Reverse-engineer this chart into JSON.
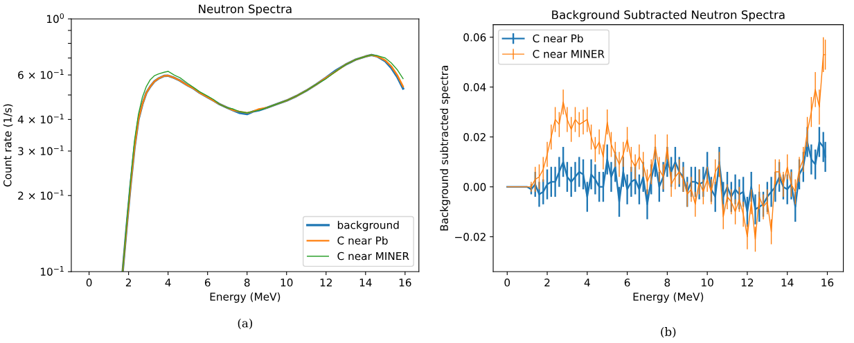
{
  "chart_data": [
    {
      "type": "line",
      "title": "Neutron Spectra",
      "xlabel": "Energy (MeV)",
      "ylabel": "Count rate (1/s)",
      "log": true,
      "legend": "lower right",
      "annotations": [
        "(a)"
      ],
      "xlim": [
        -0.9,
        16.7
      ],
      "xticks": [
        0,
        2,
        4,
        6,
        8,
        10,
        12,
        14,
        16
      ],
      "ylim": [
        0.1,
        1
      ],
      "yticks": [
        {
          "value": 0.1,
          "label": "10$^{−1}$"
        },
        {
          "value": 0.2,
          "label": "2 × 10$^{−1}$"
        },
        {
          "value": 0.3,
          "label": "3 × 10$^{−1}$"
        },
        {
          "value": 0.4,
          "label": "4 × 10$^{−1}$"
        },
        {
          "value": 0.5,
          "label": null
        },
        {
          "value": 0.6,
          "label": "6 × 10$^{−1}$"
        },
        {
          "value": 0.7,
          "label": null
        },
        {
          "value": 0.8,
          "label": null
        },
        {
          "value": 0.9,
          "label": null
        },
        {
          "value": 1,
          "label": "10$^{0}$"
        }
      ],
      "x": [
        1.7,
        1.9,
        2.1,
        2.3,
        2.5,
        2.7,
        2.9,
        3.1,
        3.3,
        3.5,
        3.8,
        4.0,
        4.3,
        4.6,
        5.0,
        5.3,
        5.6,
        6.0,
        6.3,
        6.6,
        7.0,
        7.3,
        7.6,
        8.0,
        8.3,
        8.6,
        9.0,
        9.5,
        10.0,
        10.5,
        11.0,
        11.5,
        12.0,
        12.5,
        13.0,
        13.5,
        14.0,
        14.3,
        14.6,
        15.0,
        15.3,
        15.6,
        15.9
      ],
      "series": [
        {
          "name": "background",
          "color": "#1f77b4",
          "values": [
            0.1,
            0.15,
            0.22,
            0.31,
            0.4,
            0.46,
            0.51,
            0.54,
            0.565,
            0.58,
            0.595,
            0.596,
            0.585,
            0.57,
            0.545,
            0.53,
            0.51,
            0.49,
            0.475,
            0.46,
            0.445,
            0.435,
            0.425,
            0.42,
            0.43,
            0.435,
            0.445,
            0.46,
            0.475,
            0.495,
            0.52,
            0.55,
            0.585,
            0.625,
            0.66,
            0.69,
            0.71,
            0.72,
            0.71,
            0.68,
            0.64,
            0.59,
            0.53
          ]
        },
        {
          "name": "C near Pb",
          "color": "#ff7f0e",
          "values": [
            0.1,
            0.15,
            0.22,
            0.31,
            0.4,
            0.46,
            0.51,
            0.54,
            0.565,
            0.58,
            0.595,
            0.596,
            0.585,
            0.57,
            0.545,
            0.53,
            0.51,
            0.49,
            0.475,
            0.46,
            0.445,
            0.435,
            0.43,
            0.425,
            0.43,
            0.44,
            0.445,
            0.46,
            0.475,
            0.495,
            0.52,
            0.55,
            0.585,
            0.62,
            0.66,
            0.69,
            0.71,
            0.72,
            0.71,
            0.685,
            0.65,
            0.6,
            0.54
          ]
        },
        {
          "name": "C near MINER",
          "color": "#2ca02c",
          "values": [
            0.1,
            0.155,
            0.23,
            0.33,
            0.42,
            0.49,
            0.54,
            0.575,
            0.595,
            0.605,
            0.615,
            0.62,
            0.6,
            0.585,
            0.555,
            0.535,
            0.515,
            0.495,
            0.48,
            0.46,
            0.445,
            0.44,
            0.43,
            0.425,
            0.43,
            0.435,
            0.445,
            0.46,
            0.475,
            0.495,
            0.52,
            0.55,
            0.58,
            0.62,
            0.66,
            0.69,
            0.71,
            0.72,
            0.715,
            0.7,
            0.67,
            0.63,
            0.58
          ]
        }
      ]
    },
    {
      "type": "line",
      "title": "Background Subtracted Neutron Spectra",
      "xlabel": "Energy (MeV)",
      "ylabel": "Background subtracted spectra",
      "legend": "upper left",
      "annotations": [
        "(b)"
      ],
      "xlim": [
        -0.7,
        16.8
      ],
      "xticks": [
        0,
        2,
        4,
        6,
        8,
        10,
        12,
        14,
        16
      ],
      "ylim": [
        -0.034,
        0.065
      ],
      "yticks": [
        {
          "value": -0.02,
          "label": "−0.02"
        },
        {
          "value": 0,
          "label": "0.00"
        },
        {
          "value": 0.02,
          "label": "0.02"
        },
        {
          "value": 0.04,
          "label": "0.04"
        },
        {
          "value": 0.06,
          "label": "0.06"
        }
      ],
      "x": [
        0,
        0.2,
        0.4,
        0.6,
        0.8,
        1.0,
        1.2,
        1.4,
        1.6,
        1.8,
        2.0,
        2.2,
        2.4,
        2.6,
        2.8,
        3.0,
        3.2,
        3.4,
        3.6,
        3.8,
        4.0,
        4.2,
        4.4,
        4.6,
        4.8,
        5.0,
        5.2,
        5.4,
        5.6,
        5.8,
        6.0,
        6.2,
        6.4,
        6.6,
        6.8,
        7.0,
        7.2,
        7.4,
        7.6,
        7.8,
        8.0,
        8.2,
        8.4,
        8.6,
        8.8,
        9.0,
        9.2,
        9.4,
        9.6,
        9.8,
        10.0,
        10.2,
        10.4,
        10.6,
        10.8,
        11.0,
        11.2,
        11.4,
        11.6,
        11.8,
        12.0,
        12.2,
        12.4,
        12.6,
        12.8,
        13.0,
        13.2,
        13.4,
        13.6,
        13.8,
        14.0,
        14.2,
        14.4,
        14.6,
        14.8,
        15.0,
        15.2,
        15.4,
        15.6,
        15.8,
        15.9
      ],
      "series": [
        {
          "name": "C near Pb",
          "color": "#1f77b4",
          "values": [
            0,
            0,
            0,
            0,
            0,
            0,
            -0.001,
            0.001,
            -0.003,
            -0.002,
            0.001,
            0.002,
            0.002,
            0.006,
            0.01,
            0.004,
            0.002,
            0.004,
            0.006,
            0.005,
            -0.004,
            0.005,
            0.003,
            0,
            0,
            0.011,
            0.004,
            0.008,
            -0.006,
            0.006,
            -0.001,
            0.002,
            0.003,
            -0.001,
            0.004,
            -0.007,
            0.003,
            0.01,
            0,
            0.004,
            0.01,
            0.006,
            0.01,
            0.006,
            0.004,
            -0.002,
            0.002,
            0.002,
            0.001,
            0.002,
            0.008,
            -0.001,
            -0.004,
            0.01,
            -0.004,
            0,
            -0.004,
            -0.001,
            -0.003,
            -0.002,
            -0.01,
            0,
            -0.009,
            -0.008,
            -0.007,
            -0.004,
            -0.002,
            0,
            0.004,
            0,
            -0.001,
            0.001,
            -0.008,
            0.005,
            0.008,
            0.018,
            0.011,
            0.009,
            0.018,
            0.016,
            0.012
          ],
          "errors": [
            0,
            0,
            0,
            0,
            0,
            0,
            0.002,
            0.005,
            0.005,
            0.005,
            0.006,
            0.006,
            0.006,
            0.006,
            0.006,
            0.006,
            0.006,
            0.006,
            0.006,
            0.006,
            0.006,
            0.006,
            0.006,
            0.006,
            0.006,
            0.006,
            0.006,
            0.006,
            0.006,
            0.006,
            0.006,
            0.006,
            0.006,
            0.006,
            0.006,
            0.006,
            0.006,
            0.006,
            0.006,
            0.006,
            0.006,
            0.006,
            0.006,
            0.006,
            0.006,
            0.006,
            0.006,
            0.006,
            0.006,
            0.006,
            0.006,
            0.005,
            0.006,
            0.006,
            0.006,
            0.006,
            0.006,
            0.006,
            0.006,
            0.006,
            0.006,
            0.006,
            0.006,
            0.006,
            0.005,
            0.006,
            0.006,
            0.006,
            0.006,
            0.005,
            0.006,
            0.006,
            0.006,
            0.006,
            0.006,
            0.006,
            0.006,
            0.006,
            0.006,
            0.006,
            0.006
          ]
        },
        {
          "name": "C near MINER",
          "color": "#ff7f0e",
          "values": [
            0,
            0,
            0,
            0,
            0,
            0,
            0,
            0.003,
            0.004,
            0.007,
            0.013,
            0.02,
            0.027,
            0.025,
            0.034,
            0.027,
            0.023,
            0.027,
            0.025,
            0.026,
            0.027,
            0.02,
            0.015,
            0.018,
            0.012,
            0.026,
            0.017,
            0.013,
            0.009,
            0.013,
            0.019,
            0.011,
            0.008,
            0.012,
            0.009,
            0.002,
            0.006,
            0.016,
            0.007,
            0.004,
            0.016,
            0.001,
            0.004,
            0.006,
            0.003,
            -0.003,
            -0.001,
            -0.007,
            0.002,
            -0.002,
            0.003,
            -0.002,
            0.006,
            0.009,
            -0.012,
            -0.004,
            -0.006,
            -0.01,
            -0.005,
            -0.011,
            -0.02,
            -0.006,
            -0.021,
            -0.004,
            -0.008,
            -0.006,
            -0.018,
            0.006,
            0.006,
            0.001,
            0.008,
            0.001,
            -0.002,
            0.007,
            0.011,
            0.022,
            0.03,
            0.039,
            0.032,
            0.053,
            0.053
          ],
          "errors": [
            0,
            0,
            0,
            0,
            0,
            0,
            0.002,
            0.005,
            0.005,
            0.005,
            0.005,
            0.005,
            0.005,
            0.005,
            0.005,
            0.005,
            0.005,
            0.005,
            0.005,
            0.005,
            0.005,
            0.005,
            0.005,
            0.005,
            0.005,
            0.005,
            0.005,
            0.005,
            0.005,
            0.005,
            0.005,
            0.005,
            0.005,
            0.005,
            0.005,
            0.005,
            0.005,
            0.005,
            0.005,
            0.005,
            0.005,
            0.005,
            0.005,
            0.005,
            0.005,
            0.005,
            0.005,
            0.005,
            0.005,
            0.005,
            0.005,
            0.005,
            0.005,
            0.005,
            0.005,
            0.005,
            0.005,
            0.005,
            0.005,
            0.005,
            0.005,
            0.005,
            0.005,
            0.005,
            0.005,
            0.005,
            0.005,
            0.005,
            0.005,
            0.005,
            0.005,
            0.005,
            0.005,
            0.005,
            0.005,
            0.006,
            0.006,
            0.007,
            0.007,
            0.007,
            0.006
          ]
        }
      ]
    }
  ]
}
